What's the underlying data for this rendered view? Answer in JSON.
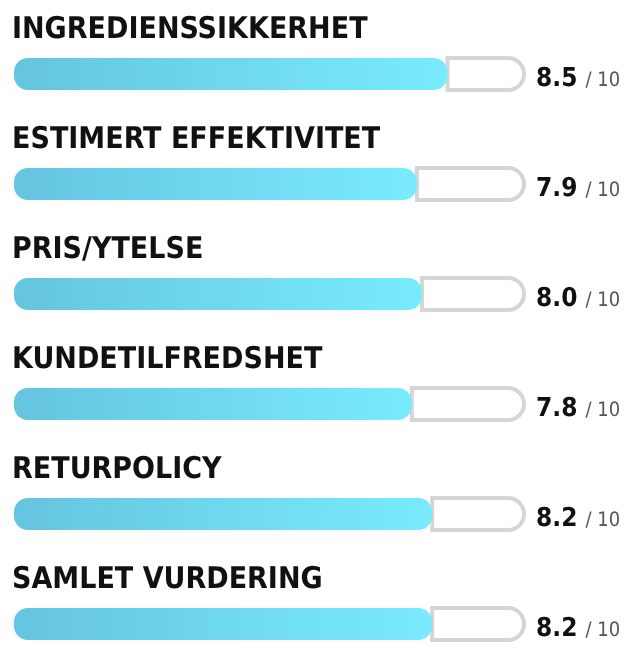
{
  "chart_data": {
    "type": "bar",
    "orientation": "horizontal",
    "categories": [
      "INGREDIENSSIKKERHET",
      "ESTIMERT EFFEKTIVITET",
      "PRIS/YTELSE",
      "KUNDETILFREDSHET",
      "RETURPOLICY",
      "SAMLET VURDERING"
    ],
    "values": [
      8.5,
      7.9,
      8.0,
      7.8,
      8.2,
      8.2
    ],
    "color": "#6dd3f0",
    "xlim": [
      0,
      10
    ],
    "value_labels": [
      "8.5",
      "7.9",
      "8.0",
      "7.8",
      "8.2",
      "8.2"
    ],
    "annotations": [
      "/ 10",
      "/ 10",
      "/ 10",
      "/ 10",
      "/ 10",
      "/ 10"
    ]
  }
}
